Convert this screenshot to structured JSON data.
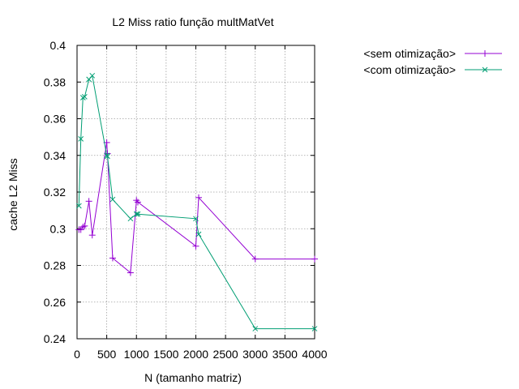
{
  "chart_data": {
    "type": "line",
    "title": "L2 Miss ratio função multMatVet",
    "xlabel": "N (tamanho matriz)",
    "ylabel": "cache L2 Miss",
    "xlim": [
      0,
      4000
    ],
    "ylim": [
      0.24,
      0.4
    ],
    "xticks": [
      0,
      500,
      1000,
      1500,
      2000,
      2500,
      3000,
      3500,
      4000
    ],
    "yticks": [
      0.24,
      0.26,
      0.28,
      0.3,
      0.32,
      0.34,
      0.36,
      0.38,
      0.4
    ],
    "xtick_labels": [
      "0",
      "500",
      "1000",
      "1500",
      "2000",
      "2500",
      "3000",
      "3500",
      "4000"
    ],
    "ytick_labels": [
      "0.24",
      "0.26",
      "0.28",
      "0.3",
      "0.32",
      "0.34",
      "0.36",
      "0.38",
      "0.4"
    ],
    "grid": true,
    "legend_position": "outside-right-top",
    "series": [
      {
        "name": "<sem otimização>",
        "color": "#9400d3",
        "marker": "plus",
        "x": [
          32,
          64,
          100,
          128,
          200,
          256,
          500,
          512,
          600,
          900,
          1000,
          1024,
          2000,
          2048,
          3000,
          4000
        ],
        "y": [
          0.2995,
          0.2995,
          0.301,
          0.3015,
          0.315,
          0.2965,
          0.347,
          0.341,
          0.284,
          0.276,
          0.3155,
          0.3145,
          0.2905,
          0.317,
          0.2835,
          0.2835
        ]
      },
      {
        "name": "<com otimização>",
        "color": "#009e73",
        "marker": "x",
        "x": [
          32,
          64,
          100,
          128,
          200,
          256,
          500,
          512,
          600,
          900,
          1000,
          1024,
          2000,
          2048,
          3000,
          4000
        ],
        "y": [
          0.3125,
          0.349,
          0.3715,
          0.372,
          0.3815,
          0.3835,
          0.34,
          0.3395,
          0.316,
          0.3055,
          0.308,
          0.308,
          0.3055,
          0.297,
          0.2455,
          0.2455
        ]
      }
    ]
  }
}
